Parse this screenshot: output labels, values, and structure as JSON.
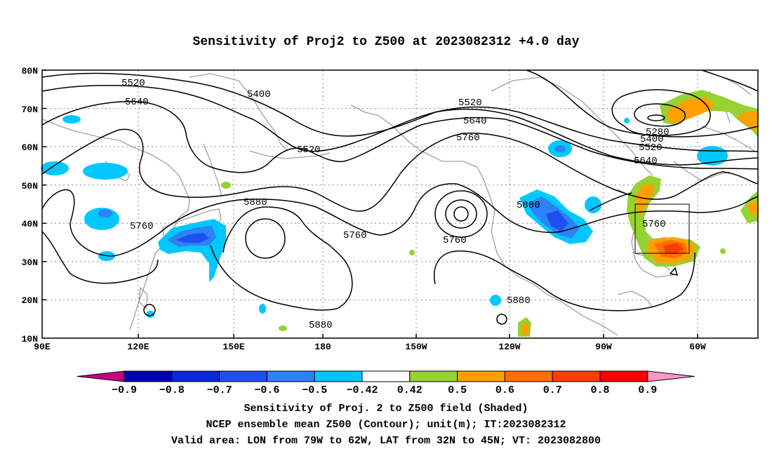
{
  "title": "Sensitivity of Proj2 to Z500 at 2023082312 +4.0 day",
  "lat_labels": [
    "80N",
    "70N",
    "60N",
    "50N",
    "40N",
    "30N",
    "20N",
    "10N"
  ],
  "lon_labels": [
    "90E",
    "120E",
    "150E",
    "180",
    "150W",
    "120W",
    "90W",
    "60W"
  ],
  "contour_labels": {
    "l5520a": "5520",
    "l5640a": "5640",
    "l5400a": "5400",
    "l5520b": "5520",
    "l5880a": "5880",
    "l5760a": "5760",
    "l5760b": "5760",
    "l5880b": "5880",
    "l5520c": "5520",
    "l5640c": "5640",
    "l5760c": "5760",
    "l5760d": "5760",
    "l5880c": "5880",
    "l5880d": "5880",
    "l5280": "5280",
    "l5400b": "5400",
    "l5520d": "5520",
    "l5640d": "5640",
    "l5760e": "5760"
  },
  "colorbar": {
    "labels": [
      "−0.9",
      "−0.8",
      "−0.7",
      "−0.6",
      "−0.5",
      "−0.42",
      "0.42",
      "0.5",
      "0.6",
      "0.7",
      "0.8",
      "0.9"
    ],
    "colors": [
      "#0000b4",
      "#0a28dc",
      "#1e50f0",
      "#2d82f5",
      "#00c8ff",
      "#ffffff",
      "#96d232",
      "#ffa000",
      "#ff6e00",
      "#ff3c00",
      "#ff0000"
    ],
    "low_end_color": "#c80082",
    "high_end_color": "#ff96c8"
  },
  "captions": {
    "line1": "Sensitivity of Proj. 2 to Z500 field (Shaded)",
    "line2": "NCEP ensemble mean Z500 (Contour); unit(m); IT:2023082312",
    "line3": "Valid area: LON from 79W to 62W, LAT from 32N to 45N; VT: 2023082800"
  }
}
